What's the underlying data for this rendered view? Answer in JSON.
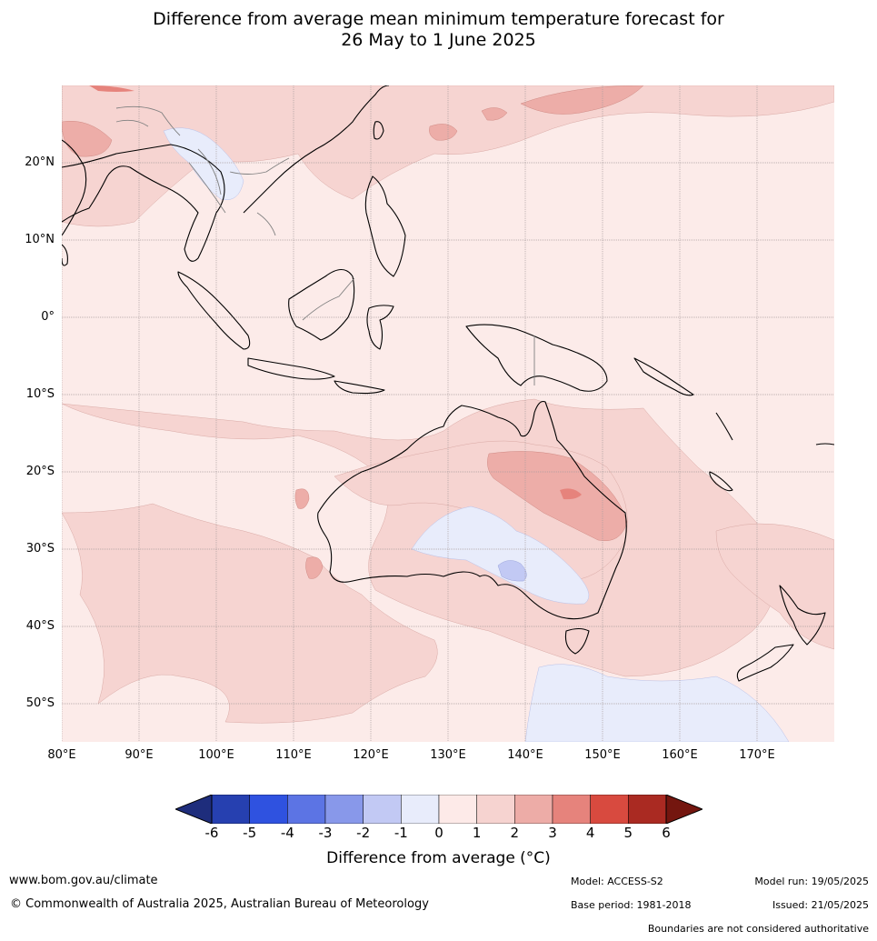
{
  "title_line1": "Difference from average mean minimum temperature forecast for",
  "title_line2": "26 May to 1 June 2025",
  "lat_labels": [
    "20°N",
    "10°N",
    "0°",
    "10°S",
    "20°S",
    "30°S",
    "40°S",
    "50°S"
  ],
  "lon_labels": [
    "80°E",
    "90°E",
    "100°E",
    "110°E",
    "120°E",
    "130°E",
    "140°E",
    "150°E",
    "160°E",
    "170°E"
  ],
  "colorbar": {
    "ticks": [
      "-6",
      "-5",
      "-4",
      "-3",
      "-2",
      "-1",
      "0",
      "1",
      "2",
      "3",
      "4",
      "5",
      "6"
    ],
    "colors": [
      "#1e2d7c",
      "#2640b0",
      "#2f52e0",
      "#5c74e4",
      "#8898ea",
      "#c2c9f4",
      "#e8ecfb",
      "#fdeae8",
      "#f6d3d0",
      "#edaca7",
      "#e6837c",
      "#d84a3f",
      "#aa2a22",
      "#74160f"
    ],
    "label": "Difference from average (°C)"
  },
  "footer": {
    "url": "www.bom.gov.au/climate",
    "copyright": "© Commonwealth of Australia 2025, Australian Bureau of Meteorology",
    "model": "Model: ACCESS-S2",
    "base_period": "Base period: 1981-2018",
    "model_run": "Model run: 19/05/2025",
    "issued": "Issued: 21/05/2025",
    "disclaimer": "Boundaries are not considered authoritative"
  }
}
